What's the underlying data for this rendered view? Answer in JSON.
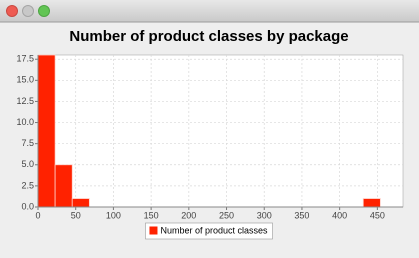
{
  "chart_data": {
    "type": "histogram",
    "title": "Number of product classes by package",
    "bins": [
      0,
      22.7,
      45.4,
      68.1,
      90.8,
      113.5,
      136.2,
      158.9,
      181.6,
      204.3,
      227,
      249.7,
      272.4,
      295.1,
      317.8,
      340.5,
      363.2,
      385.9,
      408.6,
      431.3,
      454
    ],
    "series": [
      {
        "name": "Number of product classes",
        "color": "#ff2200",
        "values": [
          18,
          5,
          1,
          0,
          0,
          0,
          0,
          0,
          0,
          0,
          0,
          0,
          0,
          0,
          0,
          0,
          0,
          0,
          0,
          1
        ]
      }
    ],
    "xlim": [
      0,
      484
    ],
    "xticks": [
      0,
      50,
      100,
      150,
      200,
      250,
      300,
      350,
      400,
      450
    ],
    "ylim": [
      0,
      18
    ],
    "yticks": [
      {
        "value": 0,
        "label": "0.0"
      },
      2.5,
      {
        "value": 5,
        "label": "5.0"
      },
      7.5,
      {
        "value": 10,
        "label": "10.0"
      },
      12.5,
      {
        "value": 15,
        "label": "15.0"
      },
      17.5
    ],
    "grid": true,
    "legend": "bottom"
  }
}
